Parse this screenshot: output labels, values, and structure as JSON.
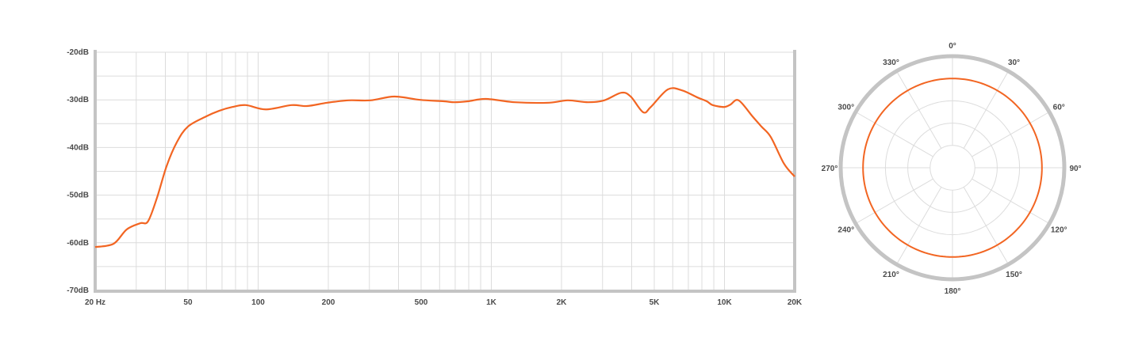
{
  "colors": {
    "curve": "#f26522",
    "axis": "#c4c4c4",
    "grid": "#dcdcdc",
    "label": "#4a4a4a"
  },
  "chart_data": [
    {
      "type": "line",
      "xscale": "log",
      "xlim": [
        20,
        20000
      ],
      "ylim": [
        -70,
        -20
      ],
      "grid": true,
      "y_ticks": [
        -20,
        -30,
        -40,
        -50,
        -60,
        -70
      ],
      "y_tick_labels": [
        "-20dB",
        "-30dB",
        "-40dB",
        "-50dB",
        "-60dB",
        "-70dB"
      ],
      "x_ticks": [
        20,
        50,
        100,
        200,
        500,
        1000,
        2000,
        5000,
        10000,
        20000
      ],
      "x_tick_labels": [
        "20 Hz",
        "50",
        "100",
        "200",
        "500",
        "1K",
        "2K",
        "5K",
        "10K",
        "20K"
      ],
      "x": [
        20,
        24,
        27.3,
        31.2,
        33.7,
        36.8,
        40.5,
        44.8,
        50,
        59.7,
        68,
        77.5,
        88.6,
        107.7,
        139,
        162,
        198,
        244,
        303,
        384,
        495,
        626,
        695,
        794,
        948,
        1263,
        1770,
        2126,
        2600,
        3050,
        3610,
        3960,
        4480,
        4830,
        5720,
        6570,
        7660,
        8400,
        8900,
        9970,
        10600,
        11500,
        13200,
        14400,
        15800,
        18000,
        20000
      ],
      "y": [
        -60.9,
        -60.2,
        -57.2,
        -55.9,
        -55.5,
        -50.6,
        -43.9,
        -38.9,
        -35.6,
        -33.5,
        -32.3,
        -31.5,
        -31.1,
        -32.0,
        -31.1,
        -31.3,
        -30.6,
        -30.1,
        -30.1,
        -29.3,
        -30.0,
        -30.3,
        -30.5,
        -30.3,
        -29.8,
        -30.5,
        -30.6,
        -30.1,
        -30.5,
        -30.1,
        -28.5,
        -29.3,
        -32.6,
        -31.5,
        -27.8,
        -28.0,
        -29.5,
        -30.3,
        -31.1,
        -31.5,
        -31.0,
        -30.1,
        -33.5,
        -35.6,
        -37.8,
        -43.4,
        -46.1
      ]
    },
    {
      "type": "polar",
      "pattern": "omnidirectional",
      "angles": [
        0,
        30,
        60,
        90,
        120,
        150,
        180,
        210,
        240,
        270,
        300,
        330
      ],
      "angle_labels": [
        "0°",
        "30°",
        "60°",
        "90°",
        "120°",
        "150°",
        "180°",
        "210°",
        "240°",
        "270°",
        "300°",
        "330°"
      ],
      "rlim": [
        0,
        5
      ],
      "rings": [
        1,
        2,
        3,
        4
      ],
      "values": [
        4,
        4,
        4,
        4,
        4,
        4,
        4,
        4,
        4,
        4,
        4,
        4
      ]
    }
  ]
}
